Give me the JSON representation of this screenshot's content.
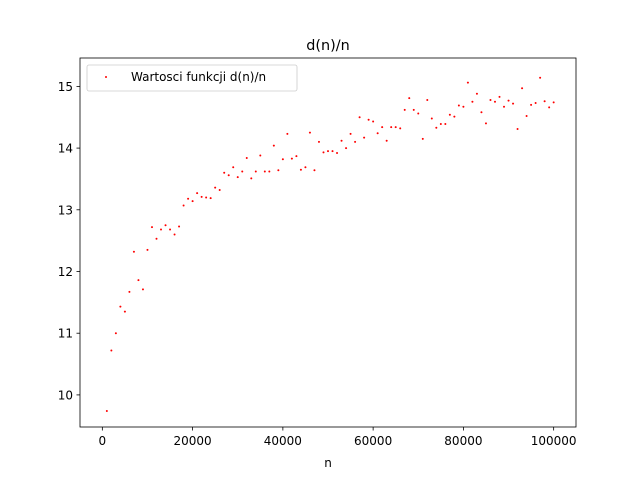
{
  "chart_data": {
    "type": "scatter",
    "title": "d(n)/n",
    "xlabel": "n",
    "ylabel": "",
    "xlim": [
      -4950,
      104950
    ],
    "ylim": [
      9.48,
      15.46
    ],
    "xticks": [
      0,
      20000,
      40000,
      60000,
      80000,
      100000
    ],
    "xtick_labels": [
      "0",
      "20000",
      "40000",
      "60000",
      "80000",
      "100000"
    ],
    "yticks": [
      10,
      11,
      12,
      13,
      14,
      15
    ],
    "ytick_labels": [
      "10",
      "11",
      "12",
      "13",
      14,
      "15"
    ],
    "grid": false,
    "legend_position": "top-left",
    "series": [
      {
        "name": "Wartosci funkcji d(n)/n",
        "color": "#ff0000",
        "marker": "point",
        "x": [
          1000,
          2000,
          3000,
          4000,
          5000,
          6000,
          7000,
          8000,
          9000,
          10000,
          11000,
          12000,
          13000,
          14000,
          15000,
          16000,
          17000,
          18000,
          19000,
          20000,
          21000,
          22000,
          23000,
          24000,
          25000,
          26000,
          27000,
          28000,
          29000,
          30000,
          31000,
          32000,
          33000,
          34000,
          35000,
          36000,
          37000,
          38000,
          39000,
          40000,
          41000,
          42000,
          43000,
          44000,
          45000,
          46000,
          47000,
          48000,
          49000,
          50000,
          51000,
          52000,
          53000,
          54000,
          55000,
          56000,
          57000,
          58000,
          59000,
          60000,
          61000,
          62000,
          63000,
          64000,
          65000,
          66000,
          67000,
          68000,
          69000,
          70000,
          71000,
          72000,
          73000,
          74000,
          75000,
          76000,
          77000,
          78000,
          79000,
          80000,
          81000,
          82000,
          83000,
          84000,
          85000,
          86000,
          87000,
          88000,
          89000,
          90000,
          91000,
          92000,
          93000,
          94000,
          95000,
          96000,
          97000,
          98000,
          99000,
          100000
        ],
        "y": [
          9.74,
          10.72,
          11.0,
          11.43,
          11.35,
          11.67,
          12.32,
          11.86,
          11.71,
          12.35,
          12.72,
          12.53,
          12.68,
          12.75,
          12.68,
          12.6,
          12.73,
          13.07,
          13.18,
          13.14,
          13.27,
          13.21,
          13.2,
          13.19,
          13.36,
          13.32,
          13.6,
          13.56,
          13.69,
          13.53,
          13.62,
          13.84,
          13.51,
          13.62,
          13.88,
          13.62,
          13.62,
          14.04,
          13.64,
          13.82,
          14.23,
          13.83,
          13.87,
          13.65,
          13.69,
          14.25,
          13.64,
          14.1,
          13.93,
          13.95,
          13.95,
          13.92,
          14.12,
          14.0,
          14.23,
          14.1,
          14.5,
          14.17,
          14.46,
          14.43,
          14.24,
          14.34,
          14.12,
          14.34,
          14.34,
          14.32,
          14.62,
          14.81,
          14.62,
          14.56,
          14.15,
          14.78,
          14.48,
          14.33,
          14.39,
          14.39,
          14.54,
          14.51,
          14.69,
          14.67,
          15.06,
          14.75,
          14.88,
          14.58,
          14.4,
          14.78,
          14.75,
          14.83,
          14.67,
          14.77,
          14.72,
          14.31,
          14.97,
          14.52,
          14.7,
          14.73,
          15.14,
          14.76,
          14.66,
          14.74
        ]
      }
    ]
  }
}
